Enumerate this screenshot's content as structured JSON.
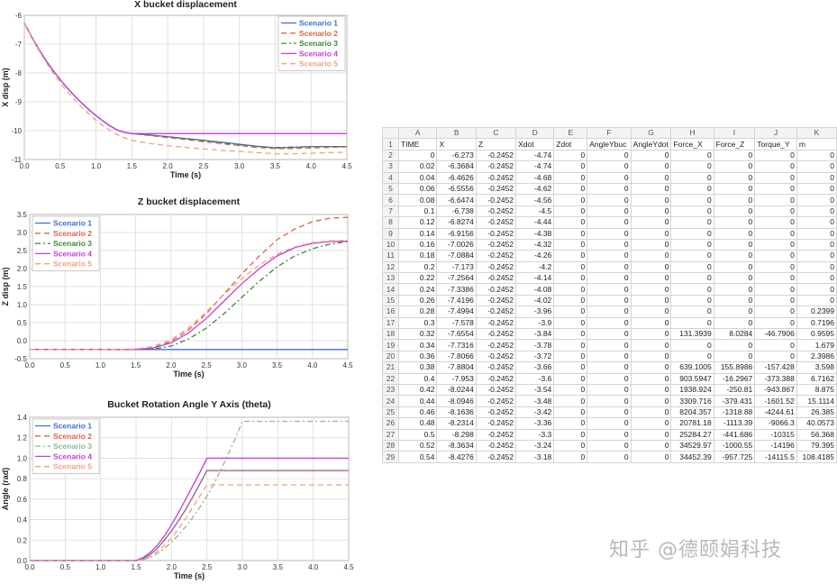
{
  "chart_data": [
    {
      "type": "line",
      "title": "X bucket displacement",
      "xlabel": "Time (s)",
      "ylabel": "X disp (m)",
      "xlim": [
        0,
        4.5
      ],
      "ylim": [
        -11,
        -6
      ],
      "xticks": [
        "0.0",
        "0.5",
        "1.0",
        "1.5",
        "2.0",
        "2.5",
        "3.0",
        "3.5",
        "4.0",
        "4.5"
      ],
      "yticks": [
        "-11",
        "-10",
        "-9",
        "-8",
        "-7",
        "-6"
      ],
      "grid": true,
      "legend_position": "top-right",
      "x": [
        0,
        0.1,
        0.2,
        0.3,
        0.4,
        0.5,
        0.6,
        0.7,
        0.8,
        0.9,
        1.0,
        1.1,
        1.2,
        1.3,
        1.4,
        1.5,
        1.75,
        2.0,
        2.25,
        2.5,
        2.75,
        3.0,
        3.25,
        3.5,
        3.75,
        4.0,
        4.25,
        4.5
      ],
      "series": [
        {
          "name": "Scenario 1",
          "color": "#3f6fd6",
          "dash": "solid",
          "values": [
            -6.27,
            -6.74,
            -7.17,
            -7.56,
            -7.91,
            -8.23,
            -8.52,
            -8.79,
            -9.04,
            -9.27,
            -9.48,
            -9.67,
            -9.84,
            -9.98,
            -10.06,
            -10.1,
            -10.15,
            -10.21,
            -10.27,
            -10.33,
            -10.4,
            -10.47,
            -10.54,
            -10.6,
            -10.58,
            -10.55,
            -10.55,
            -10.55
          ]
        },
        {
          "name": "Scenario 2",
          "color": "#e0604a",
          "dash": "6,4",
          "values": [
            -6.27,
            -6.74,
            -7.17,
            -7.56,
            -7.91,
            -8.23,
            -8.52,
            -8.79,
            -9.04,
            -9.27,
            -9.48,
            -9.67,
            -9.84,
            -9.98,
            -10.06,
            -10.1,
            -10.17,
            -10.24,
            -10.31,
            -10.38,
            -10.45,
            -10.52,
            -10.58,
            -10.62,
            -10.62,
            -10.6,
            -10.58,
            -10.56
          ]
        },
        {
          "name": "Scenario 3",
          "color": "#3a8a3a",
          "dash": "6,3,2,3",
          "values": [
            -6.27,
            -6.74,
            -7.17,
            -7.56,
            -7.91,
            -8.23,
            -8.52,
            -8.79,
            -9.04,
            -9.27,
            -9.48,
            -9.67,
            -9.84,
            -9.98,
            -10.06,
            -10.1,
            -10.15,
            -10.21,
            -10.28,
            -10.35,
            -10.42,
            -10.49,
            -10.55,
            -10.58,
            -10.57,
            -10.55,
            -10.55,
            -10.55
          ]
        },
        {
          "name": "Scenario 4",
          "color": "#c43fd8",
          "dash": "solid",
          "values": [
            -6.27,
            -6.74,
            -7.17,
            -7.56,
            -7.91,
            -8.23,
            -8.52,
            -8.79,
            -9.04,
            -9.27,
            -9.48,
            -9.67,
            -9.84,
            -9.98,
            -10.06,
            -10.1,
            -10.1,
            -10.1,
            -10.1,
            -10.1,
            -10.1,
            -10.1,
            -10.1,
            -10.1,
            -10.1,
            -10.1,
            -10.1,
            -10.1
          ]
        },
        {
          "name": "Scenario 5",
          "color": "#f2a07c",
          "dash": "6,4",
          "values": [
            -6.27,
            -6.76,
            -7.21,
            -7.62,
            -7.99,
            -8.33,
            -8.64,
            -8.92,
            -9.18,
            -9.42,
            -9.64,
            -9.83,
            -10.0,
            -10.14,
            -10.25,
            -10.33,
            -10.44,
            -10.52,
            -10.58,
            -10.63,
            -10.68,
            -10.72,
            -10.76,
            -10.8,
            -10.8,
            -10.78,
            -10.76,
            -10.75
          ]
        }
      ]
    },
    {
      "type": "line",
      "title": "Z bucket displacement",
      "xlabel": "Time (s)",
      "ylabel": "Z disp (m)",
      "xlim": [
        0,
        4.5
      ],
      "ylim": [
        -0.5,
        3.5
      ],
      "xticks": [
        "0.0",
        "0.5",
        "1.0",
        "1.5",
        "2.0",
        "2.5",
        "3.0",
        "3.5",
        "4.0",
        "4.5"
      ],
      "yticks": [
        "-0.5",
        "0.0",
        "0.5",
        "1.0",
        "1.5",
        "2.0",
        "2.5",
        "3.0",
        "3.5"
      ],
      "grid": true,
      "legend_position": "top-left",
      "x": [
        0,
        0.5,
        1.0,
        1.5,
        1.75,
        2.0,
        2.25,
        2.5,
        2.75,
        3.0,
        3.25,
        3.5,
        3.75,
        4.0,
        4.25,
        4.5
      ],
      "series": [
        {
          "name": "Scenario 1",
          "color": "#3f6fd6",
          "dash": "solid",
          "values": [
            -0.245,
            -0.245,
            -0.245,
            -0.245,
            -0.245,
            -0.245,
            -0.245,
            -0.245,
            -0.245,
            -0.245,
            -0.245,
            -0.245,
            -0.245,
            -0.245,
            -0.245,
            -0.245
          ]
        },
        {
          "name": "Scenario 2",
          "color": "#e0604a",
          "dash": "6,4",
          "values": [
            -0.245,
            -0.245,
            -0.245,
            -0.24,
            -0.19,
            -0.02,
            0.3,
            0.75,
            1.3,
            1.85,
            2.35,
            2.8,
            3.1,
            3.3,
            3.4,
            3.42
          ]
        },
        {
          "name": "Scenario 3",
          "color": "#3a8a3a",
          "dash": "6,3,2,3",
          "values": [
            -0.245,
            -0.245,
            -0.245,
            -0.245,
            -0.23,
            -0.15,
            0.05,
            0.35,
            0.75,
            1.2,
            1.65,
            2.05,
            2.35,
            2.55,
            2.68,
            2.75
          ]
        },
        {
          "name": "Scenario 4",
          "color": "#c43fd8",
          "dash": "solid",
          "values": [
            -0.245,
            -0.245,
            -0.245,
            -0.24,
            -0.2,
            -0.06,
            0.22,
            0.62,
            1.1,
            1.58,
            2.0,
            2.35,
            2.58,
            2.7,
            2.75,
            2.76
          ]
        },
        {
          "name": "Scenario 5",
          "color": "#f2a07c",
          "dash": "6,4",
          "values": [
            -0.245,
            -0.245,
            -0.245,
            -0.23,
            -0.16,
            0.03,
            0.36,
            0.8,
            1.28,
            1.72,
            2.1,
            2.4,
            2.6,
            2.72,
            2.77,
            2.78
          ]
        }
      ]
    },
    {
      "type": "line",
      "title": "Bucket Rotation Angle Y Axis (theta)",
      "xlabel": "Time (s)",
      "ylabel": "Angle (rad)",
      "xlim": [
        0,
        4.5
      ],
      "ylim": [
        0,
        1.4
      ],
      "xticks": [
        "0.0",
        "0.5",
        "1.0",
        "1.5",
        "2.0",
        "2.5",
        "3.0",
        "3.5",
        "4.0",
        "4.5"
      ],
      "yticks": [
        "0.0",
        "0.2",
        "0.4",
        "0.6",
        "0.8",
        "1.0",
        "1.2",
        "1.4"
      ],
      "grid": true,
      "legend_position": "top-left",
      "x": [
        0,
        0.5,
        1.0,
        1.5,
        1.6,
        1.7,
        1.8,
        1.9,
        2.0,
        2.1,
        2.2,
        2.3,
        2.4,
        2.5,
        2.6,
        2.7,
        2.8,
        2.9,
        3.0,
        3.5,
        4.0,
        4.5
      ],
      "series": [
        {
          "name": "Scenario 1",
          "color": "#3f6fd6",
          "dash": "solid",
          "values": [
            0,
            0,
            0,
            0,
            0.02,
            0.06,
            0.12,
            0.2,
            0.29,
            0.39,
            0.5,
            0.62,
            0.75,
            0.88,
            0.88,
            0.88,
            0.88,
            0.88,
            0.88,
            0.88,
            0.88,
            0.88
          ]
        },
        {
          "name": "Scenario 2",
          "color": "#e0604a",
          "dash": "6,4",
          "values": [
            0,
            0,
            0,
            0,
            0.02,
            0.06,
            0.12,
            0.2,
            0.29,
            0.39,
            0.5,
            0.62,
            0.75,
            0.88,
            0.88,
            0.88,
            0.88,
            0.88,
            0.88,
            0.88,
            0.88,
            0.88
          ]
        },
        {
          "name": "Scenario 3",
          "color": "#8fb88f",
          "dash": "6,3,2,3",
          "values": [
            0,
            0,
            0,
            0,
            0.01,
            0.03,
            0.07,
            0.12,
            0.18,
            0.25,
            0.33,
            0.42,
            0.52,
            0.63,
            0.75,
            0.89,
            1.04,
            1.19,
            1.36,
            1.36,
            1.36,
            1.36
          ]
        },
        {
          "name": "Scenario 4",
          "color": "#c43fd8",
          "dash": "solid",
          "values": [
            0,
            0,
            0,
            0,
            0.03,
            0.08,
            0.15,
            0.24,
            0.35,
            0.47,
            0.6,
            0.73,
            0.86,
            1.0,
            1.0,
            1.0,
            1.0,
            1.0,
            1.0,
            1.0,
            1.0,
            1.0
          ]
        },
        {
          "name": "Scenario 5",
          "color": "#f2a07c",
          "dash": "6,4",
          "values": [
            0,
            0,
            0,
            0,
            0.01,
            0.04,
            0.09,
            0.15,
            0.22,
            0.31,
            0.41,
            0.52,
            0.63,
            0.74,
            0.74,
            0.74,
            0.74,
            0.74,
            0.74,
            0.74,
            0.74,
            0.74
          ]
        }
      ]
    }
  ],
  "spreadsheet": {
    "col_letters": [
      "A",
      "B",
      "C",
      "D",
      "E",
      "F",
      "G",
      "H",
      "I",
      "J",
      "K"
    ],
    "rows": [
      [
        "1",
        "TIME",
        "X",
        "Z",
        "Xdot",
        "Zdot",
        "AngleYbuc",
        "AngleYdot",
        "Force_X",
        "Force_Z",
        "Torque_Y",
        "m"
      ],
      [
        "2",
        "0",
        "-6.273",
        "-0.2452",
        "-4.74",
        "0",
        "0",
        "0",
        "0",
        "0",
        "0",
        "0"
      ],
      [
        "3",
        "0.02",
        "-6.3684",
        "-0.2452",
        "-4.74",
        "0",
        "0",
        "0",
        "0",
        "0",
        "0",
        "0"
      ],
      [
        "4",
        "0.04",
        "-6.4626",
        "-0.2452",
        "-4.68",
        "0",
        "0",
        "0",
        "0",
        "0",
        "0",
        "0"
      ],
      [
        "5",
        "0.06",
        "-6.5556",
        "-0.2452",
        "-4.62",
        "0",
        "0",
        "0",
        "0",
        "0",
        "0",
        "0"
      ],
      [
        "6",
        "0.08",
        "-6.6474",
        "-0.2452",
        "-4.56",
        "0",
        "0",
        "0",
        "0",
        "0",
        "0",
        "0"
      ],
      [
        "7",
        "0.1",
        "-6.738",
        "-0.2452",
        "-4.5",
        "0",
        "0",
        "0",
        "0",
        "0",
        "0",
        "0"
      ],
      [
        "8",
        "0.12",
        "-6.8274",
        "-0.2452",
        "-4.44",
        "0",
        "0",
        "0",
        "0",
        "0",
        "0",
        "0"
      ],
      [
        "9",
        "0.14",
        "-6.9156",
        "-0.2452",
        "-4.38",
        "0",
        "0",
        "0",
        "0",
        "0",
        "0",
        "0"
      ],
      [
        "10",
        "0.16",
        "-7.0026",
        "-0.2452",
        "-4.32",
        "0",
        "0",
        "0",
        "0",
        "0",
        "0",
        "0"
      ],
      [
        "11",
        "0.18",
        "-7.0884",
        "-0.2452",
        "-4.26",
        "0",
        "0",
        "0",
        "0",
        "0",
        "0",
        "0"
      ],
      [
        "12",
        "0.2",
        "-7.173",
        "-0.2452",
        "-4.2",
        "0",
        "0",
        "0",
        "0",
        "0",
        "0",
        "0"
      ],
      [
        "13",
        "0.22",
        "-7.2564",
        "-0.2452",
        "-4.14",
        "0",
        "0",
        "0",
        "0",
        "0",
        "0",
        "0"
      ],
      [
        "14",
        "0.24",
        "-7.3386",
        "-0.2452",
        "-4.08",
        "0",
        "0",
        "0",
        "0",
        "0",
        "0",
        "0"
      ],
      [
        "15",
        "0.26",
        "-7.4196",
        "-0.2452",
        "-4.02",
        "0",
        "0",
        "0",
        "0",
        "0",
        "0",
        "0"
      ],
      [
        "16",
        "0.28",
        "-7.4994",
        "-0.2452",
        "-3.96",
        "0",
        "0",
        "0",
        "0",
        "0",
        "0",
        "0.2399"
      ],
      [
        "17",
        "0.3",
        "-7.578",
        "-0.2452",
        "-3.9",
        "0",
        "0",
        "0",
        "0",
        "0",
        "0",
        "0.7196"
      ],
      [
        "18",
        "0.32",
        "-7.6554",
        "-0.2452",
        "-3.84",
        "0",
        "0",
        "0",
        "131.3939",
        "8.0284",
        "-46.7906",
        "0.9595"
      ],
      [
        "19",
        "0.34",
        "-7.7316",
        "-0.2452",
        "-3.78",
        "0",
        "0",
        "0",
        "0",
        "0",
        "0",
        "1.679"
      ],
      [
        "20",
        "0.36",
        "-7.8066",
        "-0.2452",
        "-3.72",
        "0",
        "0",
        "0",
        "0",
        "0",
        "0",
        "2.3986"
      ],
      [
        "21",
        "0.38",
        "-7.8804",
        "-0.2452",
        "-3.66",
        "0",
        "0",
        "0",
        "639.1005",
        "155.8986",
        "-157.428",
        "3.598"
      ],
      [
        "22",
        "0.4",
        "-7.953",
        "-0.2452",
        "-3.6",
        "0",
        "0",
        "0",
        "903.5947",
        "-16.2967",
        "-373.388",
        "6.7162"
      ],
      [
        "23",
        "0.42",
        "-8.0244",
        "-0.2452",
        "-3.54",
        "0",
        "0",
        "0",
        "1938.924",
        "-250.81",
        "-943.867",
        "8.875"
      ],
      [
        "24",
        "0.44",
        "-8.0946",
        "-0.2452",
        "-3.48",
        "0",
        "0",
        "0",
        "3309.716",
        "-379.431",
        "-1601.52",
        "15.1114"
      ],
      [
        "25",
        "0.46",
        "-8.1636",
        "-0.2452",
        "-3.42",
        "0",
        "0",
        "0",
        "8204.357",
        "-1318.88",
        "-4244.61",
        "26.385"
      ],
      [
        "26",
        "0.48",
        "-8.2314",
        "-0.2452",
        "-3.36",
        "0",
        "0",
        "0",
        "20781.18",
        "-1113.39",
        "-9066.3",
        "40.0573"
      ],
      [
        "27",
        "0.5",
        "-8.298",
        "-0.2452",
        "-3.3",
        "0",
        "0",
        "0",
        "25284.27",
        "-441.686",
        "-10315",
        "56.368"
      ],
      [
        "28",
        "0.52",
        "-8.3634",
        "-0.2452",
        "-3.24",
        "0",
        "0",
        "0",
        "34529.97",
        "-1000.55",
        "-14196",
        "79.395"
      ],
      [
        "29",
        "0.54",
        "-8.4276",
        "-0.2452",
        "-3.18",
        "0",
        "0",
        "0",
        "34452.39",
        "-957.725",
        "-14115.5",
        "108.4185"
      ]
    ]
  },
  "watermark": "知乎 @德颐娟科技"
}
